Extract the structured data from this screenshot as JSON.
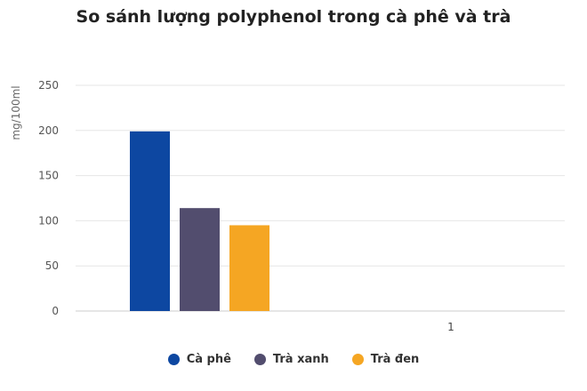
{
  "chart_data": {
    "type": "bar",
    "title": "So sánh lượng polyphenol trong cà phê và trà",
    "ylabel": "mg/100ml",
    "xlabel": "",
    "categories": [
      "1"
    ],
    "ylim": [
      0,
      250
    ],
    "yticks": [
      0,
      50,
      100,
      150,
      200,
      250
    ],
    "grid": true,
    "legend_position": "bottom",
    "series": [
      {
        "name": "Cà phê",
        "values": [
          199
        ],
        "color": "#0d47a1"
      },
      {
        "name": "Trà xanh",
        "values": [
          114
        ],
        "color": "#524d6e"
      },
      {
        "name": "Trà đen",
        "values": [
          95
        ],
        "color": "#f5a623"
      }
    ]
  }
}
